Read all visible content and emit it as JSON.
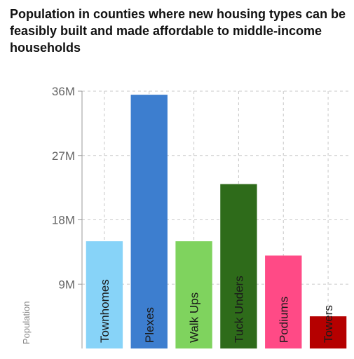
{
  "chart_data": {
    "type": "bar",
    "title": "Population in counties where new housing types can be feasibly built and made affordable to middle-income households",
    "xlabel": "",
    "ylabel": "Population",
    "categories": [
      "Townhomes",
      "Plexes",
      "Walk Ups",
      "Tuck Unders",
      "Podiums",
      "Towers"
    ],
    "values": [
      15000000,
      35500000,
      15000000,
      23000000,
      13000000,
      4500000
    ],
    "colors": [
      "#87d3f8",
      "#3d7ecf",
      "#7fd35e",
      "#2e6b1a",
      "#ff4a86",
      "#b50000"
    ],
    "ylim": [
      0,
      36000000
    ],
    "yticks": [
      0,
      9000000,
      18000000,
      27000000,
      36000000
    ],
    "ytick_labels": [
      "",
      "9M",
      "18M",
      "27M",
      "36M"
    ],
    "grid": true,
    "legend": "none"
  }
}
